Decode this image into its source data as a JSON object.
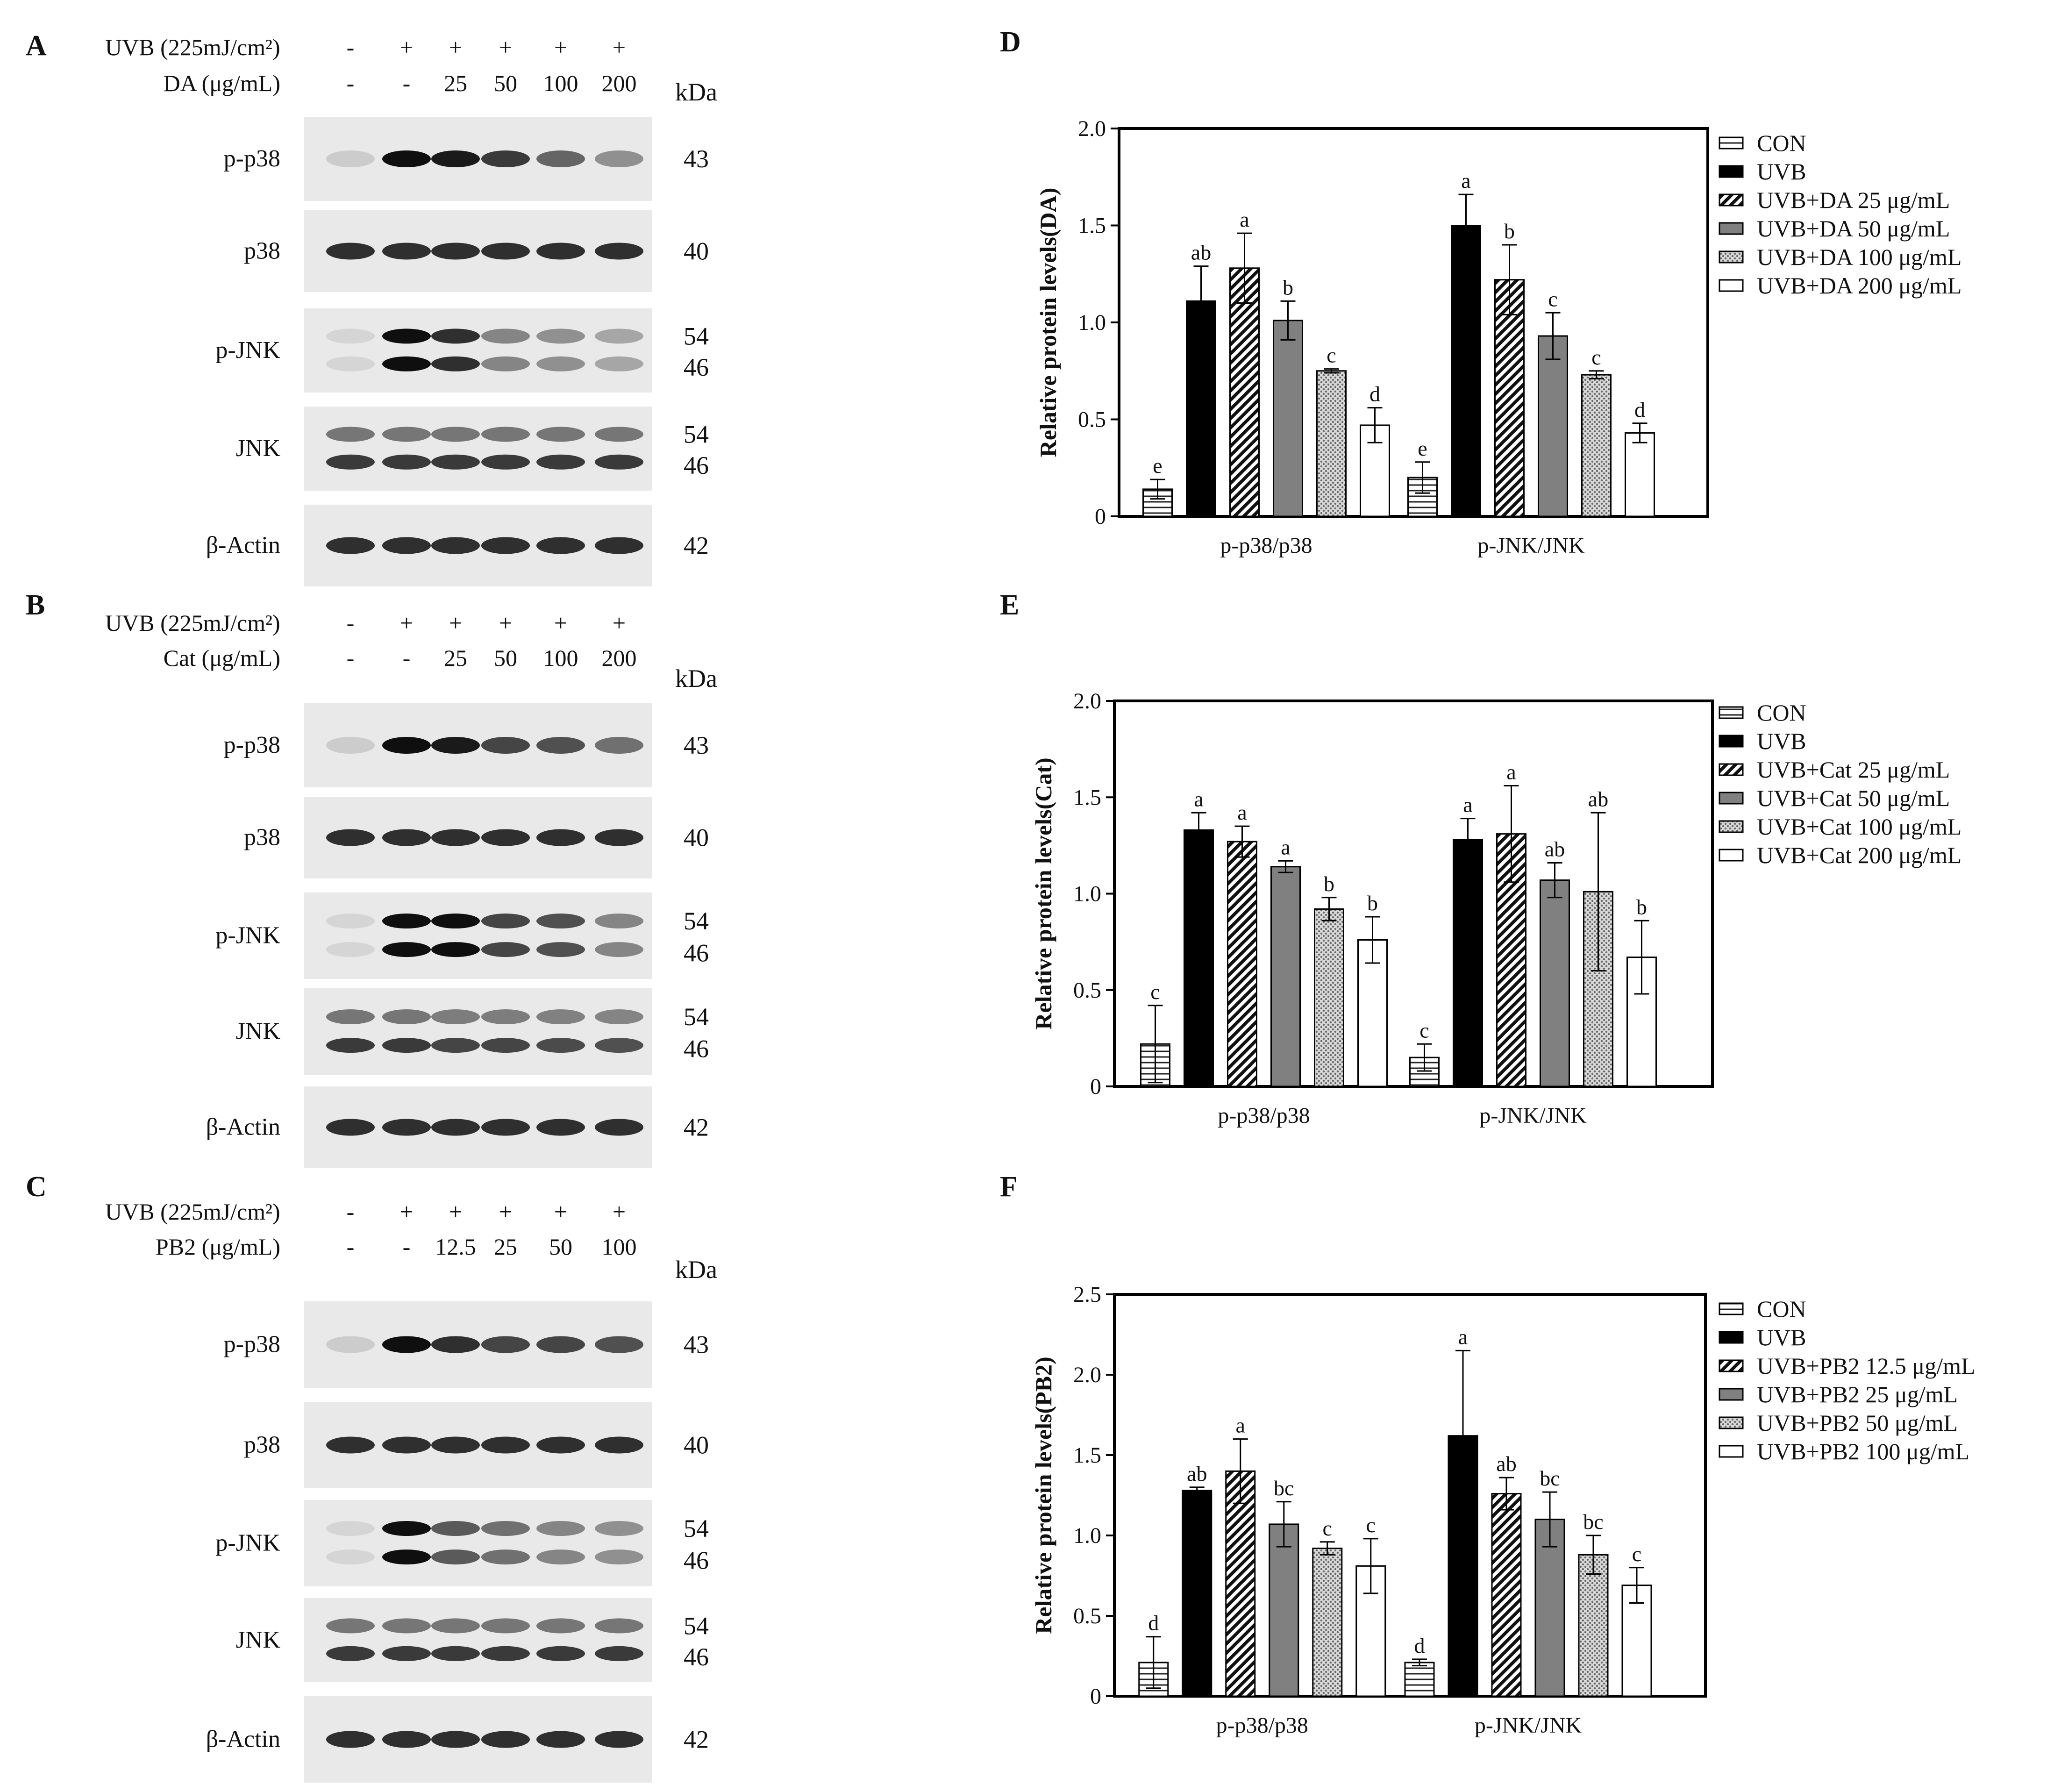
{
  "blots": [
    {
      "letter": "A",
      "uvb_label": "UVB (225mJ/cm²)",
      "uvb_signs": [
        "-",
        "+",
        "+",
        "+",
        "+",
        "+"
      ],
      "treat_label": "DA (μg/mL)",
      "doses": [
        "-",
        "-",
        "25",
        "50",
        "100",
        "200"
      ],
      "kda_header": "kDa",
      "rows": [
        {
          "name": "p-p38",
          "kda": [
            "43"
          ],
          "intensity": [
            0.12,
            1.0,
            0.95,
            0.8,
            0.6,
            0.4
          ]
        },
        {
          "name": "p38",
          "kda": [
            "40"
          ],
          "intensity": [
            0.85,
            0.85,
            0.85,
            0.85,
            0.85,
            0.85
          ]
        },
        {
          "name": "p-JNK",
          "kda": [
            "54",
            "46"
          ],
          "intensity": [
            0.08,
            1.0,
            0.85,
            0.45,
            0.4,
            0.3
          ]
        },
        {
          "name": "JNK",
          "kda": [
            "54",
            "46"
          ],
          "intensity": [
            0.8,
            0.8,
            0.8,
            0.8,
            0.8,
            0.8
          ]
        },
        {
          "name": "β-Actin",
          "kda": [
            "42"
          ],
          "intensity": [
            0.85,
            0.85,
            0.85,
            0.85,
            0.85,
            0.85
          ]
        }
      ]
    },
    {
      "letter": "B",
      "uvb_label": "UVB (225mJ/cm²)",
      "uvb_signs": [
        "-",
        "+",
        "+",
        "+",
        "+",
        "+"
      ],
      "treat_label": "Cat (μg/mL)",
      "doses": [
        "-",
        "-",
        "25",
        "50",
        "100",
        "200"
      ],
      "kda_header": "kDa",
      "rows": [
        {
          "name": "p-p38",
          "kda": [
            "43"
          ],
          "intensity": [
            0.12,
            1.0,
            0.95,
            0.75,
            0.7,
            0.55
          ]
        },
        {
          "name": "p38",
          "kda": [
            "40"
          ],
          "intensity": [
            0.85,
            0.85,
            0.85,
            0.85,
            0.85,
            0.85
          ]
        },
        {
          "name": "p-JNK",
          "kda": [
            "54",
            "46"
          ],
          "intensity": [
            0.08,
            1.0,
            1.0,
            0.75,
            0.7,
            0.45
          ]
        },
        {
          "name": "JNK",
          "kda": [
            "54",
            "46"
          ],
          "intensity": [
            0.8,
            0.8,
            0.75,
            0.75,
            0.72,
            0.7
          ]
        },
        {
          "name": "β-Actin",
          "kda": [
            "42"
          ],
          "intensity": [
            0.85,
            0.85,
            0.85,
            0.85,
            0.85,
            0.85
          ]
        }
      ]
    },
    {
      "letter": "C",
      "uvb_label": "UVB (225mJ/cm²)",
      "uvb_signs": [
        "-",
        "+",
        "+",
        "+",
        "+",
        "+"
      ],
      "treat_label": "PB2 (μg/mL)",
      "doses": [
        "-",
        "-",
        "12.5",
        "25",
        "50",
        "100"
      ],
      "kda_header": "kDa",
      "rows": [
        {
          "name": "p-p38",
          "kda": [
            "43"
          ],
          "intensity": [
            0.12,
            1.0,
            0.85,
            0.75,
            0.75,
            0.7
          ]
        },
        {
          "name": "p38",
          "kda": [
            "40"
          ],
          "intensity": [
            0.85,
            0.85,
            0.85,
            0.85,
            0.85,
            0.85
          ]
        },
        {
          "name": "p-JNK",
          "kda": [
            "54",
            "46"
          ],
          "intensity": [
            0.08,
            1.0,
            0.65,
            0.55,
            0.45,
            0.4
          ]
        },
        {
          "name": "JNK",
          "kda": [
            "54",
            "46"
          ],
          "intensity": [
            0.8,
            0.8,
            0.8,
            0.8,
            0.8,
            0.8
          ]
        },
        {
          "name": "β-Actin",
          "kda": [
            "42"
          ],
          "intensity": [
            0.85,
            0.85,
            0.85,
            0.85,
            0.85,
            0.85
          ]
        }
      ]
    }
  ],
  "chart_data": [
    {
      "letter": "D",
      "type": "bar",
      "title": "",
      "xlabel": "",
      "ylabel": "Relative protein levels(DA)",
      "ylim": [
        0,
        2.0
      ],
      "yticks": [
        "0",
        "0.5",
        "1.0",
        "1.5",
        "2.0"
      ],
      "categories": [
        "p-p38/p38",
        "p-JNK/JNK"
      ],
      "series": [
        {
          "name": "CON",
          "values": [
            0.14,
            0.2
          ],
          "err": [
            0.05,
            0.08
          ],
          "sig": [
            "e",
            "e"
          ]
        },
        {
          "name": "UVB",
          "values": [
            1.11,
            1.5
          ],
          "err": [
            0.18,
            0.16
          ],
          "sig": [
            "ab",
            "a"
          ]
        },
        {
          "name": "UVB+DA 25 μg/mL",
          "values": [
            1.28,
            1.22
          ],
          "err": [
            0.18,
            0.18
          ],
          "sig": [
            "a",
            "b"
          ]
        },
        {
          "name": "UVB+DA 50 μg/mL",
          "values": [
            1.01,
            0.93
          ],
          "err": [
            0.1,
            0.12
          ],
          "sig": [
            "b",
            "c"
          ]
        },
        {
          "name": "UVB+DA 100 μg/mL",
          "values": [
            0.75,
            0.73
          ],
          "err": [
            0.01,
            0.02
          ],
          "sig": [
            "c",
            "c"
          ]
        },
        {
          "name": "UVB+DA 200 μg/mL",
          "values": [
            0.47,
            0.43
          ],
          "err": [
            0.09,
            0.05
          ],
          "sig": [
            "d",
            "d"
          ]
        }
      ]
    },
    {
      "letter": "E",
      "type": "bar",
      "title": "",
      "xlabel": "",
      "ylabel": "Relative protein levels(Cat)",
      "ylim": [
        0,
        2.0
      ],
      "yticks": [
        "0",
        "0.5",
        "1.0",
        "1.5",
        "2.0"
      ],
      "categories": [
        "p-p38/p38",
        "p-JNK/JNK"
      ],
      "series": [
        {
          "name": "CON",
          "values": [
            0.22,
            0.15
          ],
          "err": [
            0.2,
            0.07
          ],
          "sig": [
            "c",
            "c"
          ]
        },
        {
          "name": "UVB",
          "values": [
            1.33,
            1.28
          ],
          "err": [
            0.09,
            0.11
          ],
          "sig": [
            "a",
            "a"
          ]
        },
        {
          "name": "UVB+Cat 25 μg/mL",
          "values": [
            1.27,
            1.31
          ],
          "err": [
            0.08,
            0.25
          ],
          "sig": [
            "a",
            "a"
          ]
        },
        {
          "name": "UVB+Cat 50 μg/mL",
          "values": [
            1.14,
            1.07
          ],
          "err": [
            0.03,
            0.09
          ],
          "sig": [
            "a",
            "ab"
          ]
        },
        {
          "name": "UVB+Cat 100 μg/mL",
          "values": [
            0.92,
            1.01
          ],
          "err": [
            0.06,
            0.41
          ],
          "sig": [
            "b",
            "ab"
          ]
        },
        {
          "name": "UVB+Cat 200 μg/mL",
          "values": [
            0.76,
            0.67
          ],
          "err": [
            0.12,
            0.19
          ],
          "sig": [
            "b",
            "b"
          ]
        }
      ]
    },
    {
      "letter": "F",
      "type": "bar",
      "title": "",
      "xlabel": "",
      "ylabel": "Relative protein levels(PB2)",
      "ylim": [
        0,
        2.5
      ],
      "yticks": [
        "0",
        "0.5",
        "1.0",
        "1.5",
        "2.0",
        "2.5"
      ],
      "categories": [
        "p-p38/p38",
        "p-JNK/JNK"
      ],
      "series": [
        {
          "name": "CON",
          "values": [
            0.21,
            0.21
          ],
          "err": [
            0.16,
            0.02
          ],
          "sig": [
            "d",
            "d"
          ]
        },
        {
          "name": "UVB",
          "values": [
            1.28,
            1.62
          ],
          "err": [
            0.02,
            0.53
          ],
          "sig": [
            "ab",
            "a"
          ]
        },
        {
          "name": "UVB+PB2 12.5 μg/mL",
          "values": [
            1.4,
            1.26
          ],
          "err": [
            0.2,
            0.1
          ],
          "sig": [
            "a",
            "ab"
          ]
        },
        {
          "name": "UVB+PB2 25 μg/mL",
          "values": [
            1.07,
            1.1
          ],
          "err": [
            0.14,
            0.17
          ],
          "sig": [
            "bc",
            "bc"
          ]
        },
        {
          "name": "UVB+PB2 50 μg/mL",
          "values": [
            0.92,
            0.88
          ],
          "err": [
            0.04,
            0.12
          ],
          "sig": [
            "c",
            "bc"
          ]
        },
        {
          "name": "UVB+PB2 100 μg/mL",
          "values": [
            0.81,
            0.69
          ],
          "err": [
            0.17,
            0.11
          ],
          "sig": [
            "c",
            "c"
          ]
        }
      ]
    }
  ]
}
